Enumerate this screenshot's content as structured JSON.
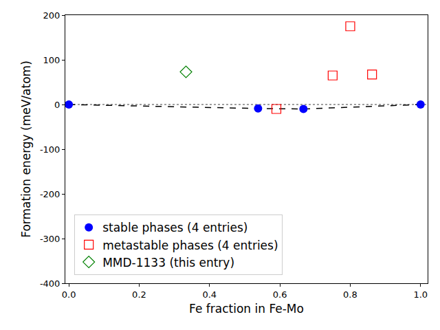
{
  "chart_data": {
    "type": "scatter",
    "x_label": "Fe fraction in Fe-Mo",
    "y_label": "Formation energy (meV/atom)",
    "xlim": [
      -0.01,
      1.02
    ],
    "xticks": [
      {
        "value": 0,
        "label": "0.0"
      },
      0.2,
      0.4,
      0.6,
      0.8,
      {
        "value": 1,
        "label": "1.0"
      }
    ],
    "ylim": [
      -400,
      200
    ],
    "yticks": [
      -400,
      -300,
      -200,
      -100,
      0,
      100,
      200
    ],
    "grid": false,
    "legend": "lower left",
    "hlines": [
      {
        "y": 0,
        "color": "gray",
        "line_style": "dotted"
      }
    ],
    "series": [
      {
        "name": "stable phases (4 entries)",
        "color": "blue",
        "marker": "circle",
        "line_style": "dashed",
        "x": [
          0.0,
          0.538,
          0.667,
          1.0
        ],
        "values": [
          0,
          -9,
          -10,
          0
        ]
      },
      {
        "name": "metastable phases (4 entries)",
        "color": "red",
        "marker": "square-open",
        "x": [
          0.59,
          0.75,
          0.8,
          0.862
        ],
        "values": [
          -10,
          65,
          175,
          67
        ]
      },
      {
        "name": "MMD-1133 (this entry)",
        "color": "green",
        "marker": "diamond-open",
        "x": [
          0.333
        ],
        "values": [
          73
        ]
      }
    ]
  }
}
